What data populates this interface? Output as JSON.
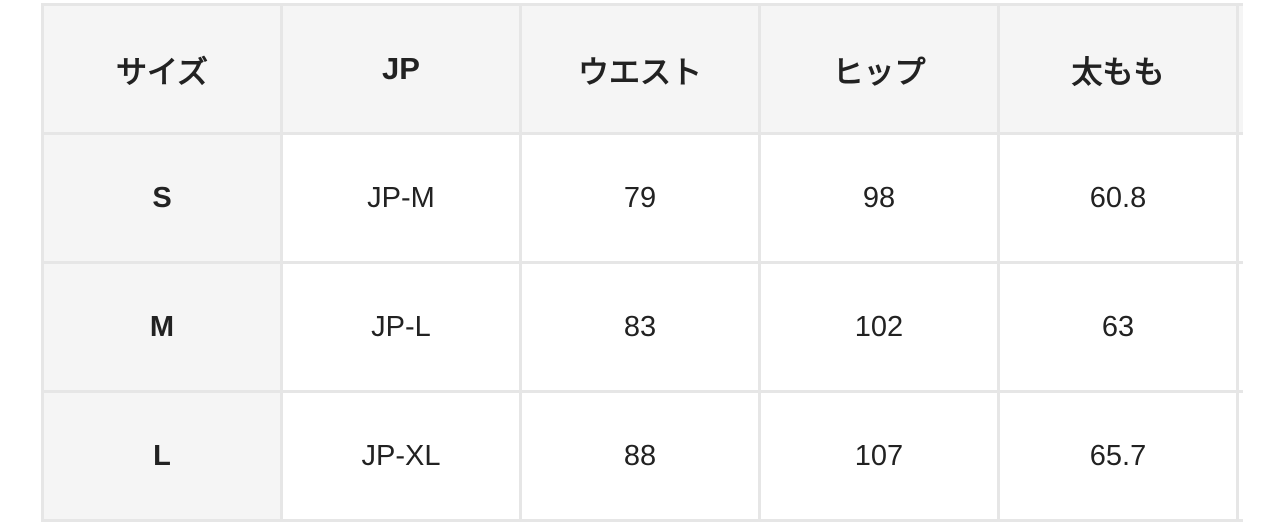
{
  "table": {
    "headers": [
      "サイズ",
      "JP",
      "ウエスト",
      "ヒップ",
      "太もも"
    ],
    "rows": [
      [
        "S",
        "JP-M",
        "79",
        "98",
        "60.8"
      ],
      [
        "M",
        "JP-L",
        "83",
        "102",
        "63"
      ],
      [
        "L",
        "JP-XL",
        "88",
        "107",
        "65.7"
      ]
    ]
  },
  "colors": {
    "header_bg": "#f5f5f5",
    "border": "#e6e6e6",
    "text": "#222222"
  }
}
